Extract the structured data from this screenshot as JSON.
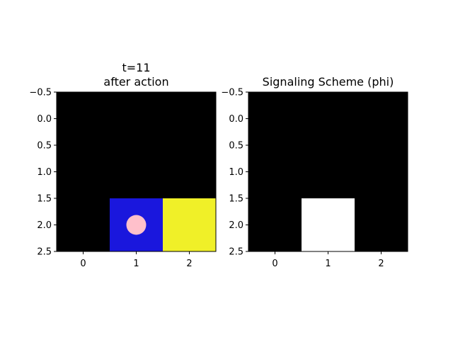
{
  "panels": [
    {
      "title_lines": [
        "t=11",
        "after action"
      ],
      "grid": [
        [
          "#000000",
          "#000000",
          "#000000"
        ],
        [
          "#000000",
          "#000000",
          "#000000"
        ],
        [
          "#000000",
          "#1a17dd",
          "#f0f028"
        ]
      ],
      "agent": {
        "row": 2,
        "col": 1,
        "color": "#ffc0cb"
      },
      "y_ticks": [
        "−0.5",
        "0.0",
        "0.5",
        "1.0",
        "1.5",
        "2.0",
        "2.5"
      ],
      "x_ticks": [
        "0",
        "1",
        "2"
      ]
    },
    {
      "title_lines": [
        "Signaling Scheme (phi)"
      ],
      "grid": [
        [
          "#000000",
          "#000000",
          "#000000"
        ],
        [
          "#000000",
          "#000000",
          "#000000"
        ],
        [
          "#000000",
          "#ffffff",
          "#000000"
        ]
      ],
      "agent": null,
      "y_ticks": [
        "−0.5",
        "0.0",
        "0.5",
        "1.0",
        "1.5",
        "2.0",
        "2.5"
      ],
      "x_ticks": [
        "0",
        "1",
        "2"
      ]
    }
  ]
}
